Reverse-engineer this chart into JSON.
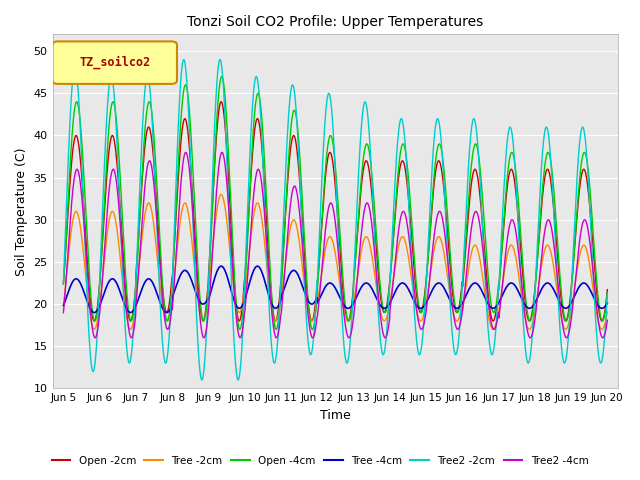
{
  "title": "Tonzi Soil CO2 Profile: Upper Temperatures",
  "xlabel": "Time",
  "ylabel": "Soil Temperature (C)",
  "ylim": [
    10,
    52
  ],
  "yticks": [
    10,
    15,
    20,
    25,
    30,
    35,
    40,
    45,
    50
  ],
  "background_color": "#e8e8e8",
  "series": [
    {
      "label": "Open -2cm",
      "color": "#cc0000"
    },
    {
      "label": "Tree -2cm",
      "color": "#ff8800"
    },
    {
      "label": "Open -4cm",
      "color": "#00cc00"
    },
    {
      "label": "Tree -4cm",
      "color": "#0000cc"
    },
    {
      "label": "Tree2 -2cm",
      "color": "#00cccc"
    },
    {
      "label": "Tree2 -4cm",
      "color": "#cc00cc"
    }
  ],
  "xtick_labels": [
    "Jun 5",
    "Jun 6",
    "Jun 7",
    "Jun 8",
    "Jun 9",
    "Jun 10",
    "Jun 11",
    "Jun 12",
    "Jun 13",
    "Jun 14",
    "Jun 15",
    "Jun 16",
    "Jun 17",
    "Jun 18",
    "Jun 19",
    "Jun 20"
  ],
  "legend_label": "TZ_soilco2",
  "legend_color": "#ffff99",
  "legend_edge": "#cc8800"
}
